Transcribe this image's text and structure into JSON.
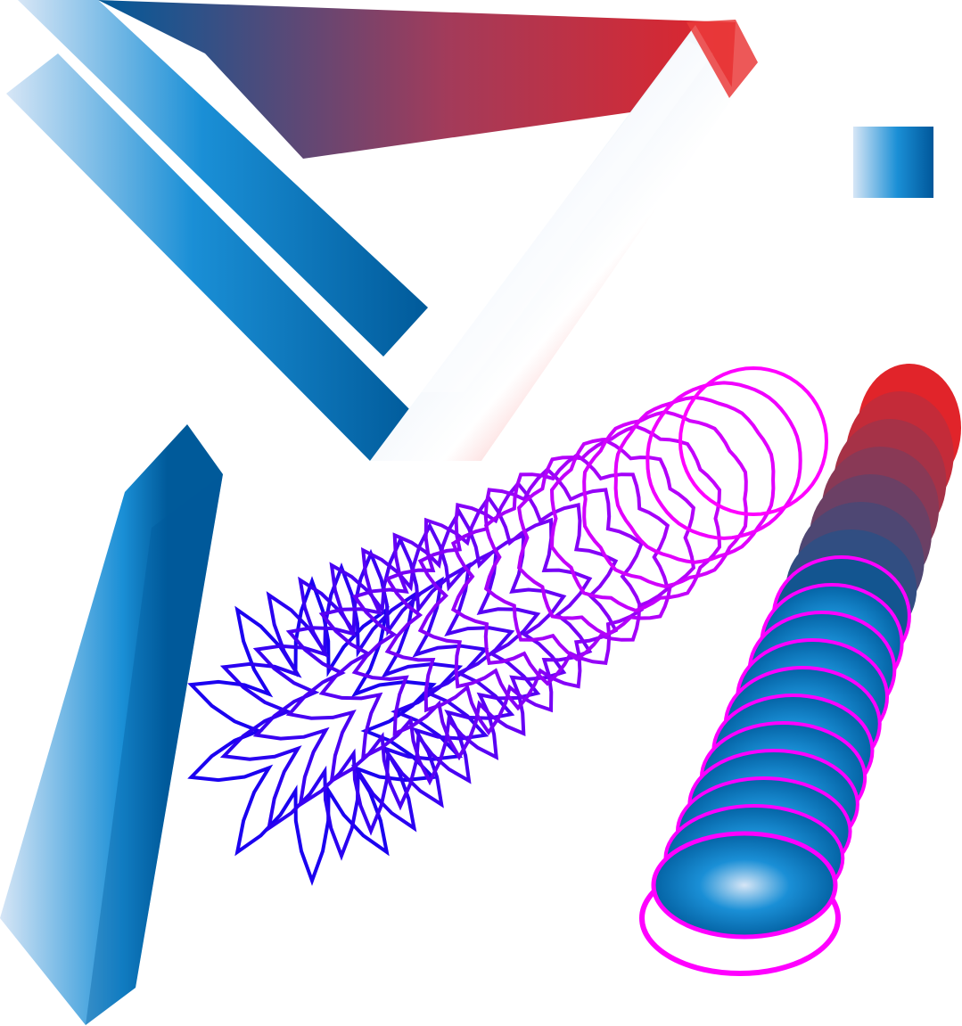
{
  "artwork": {
    "colors": {
      "light_blue": "#cfe0f3",
      "mid_blue": "#1a8fd6",
      "dark_blue": "#005a9a",
      "red": "#e1242a",
      "white_highlight": "#ffffff",
      "blend_start": "#1b00f0",
      "blend_end": "#ff00ff"
    },
    "objects": [
      {
        "name": "gradient-ribbon-top",
        "type": "blend-stroke",
        "gradient": "blue-to-red"
      },
      {
        "name": "gradient-square-swatch",
        "type": "rectangle",
        "gradient": "light-blue-to-dark-blue"
      },
      {
        "name": "gradient-ribbon-left",
        "type": "blend-stroke",
        "gradient": "blue"
      },
      {
        "name": "star-to-circle-blend",
        "type": "shape-blend",
        "steps": 16,
        "from_shape": "star",
        "to_shape": "circle"
      },
      {
        "name": "disc-stack-blend",
        "type": "shape-blend",
        "steps": 16,
        "gradient": "blue-to-red",
        "stroke": "magenta"
      }
    ]
  }
}
